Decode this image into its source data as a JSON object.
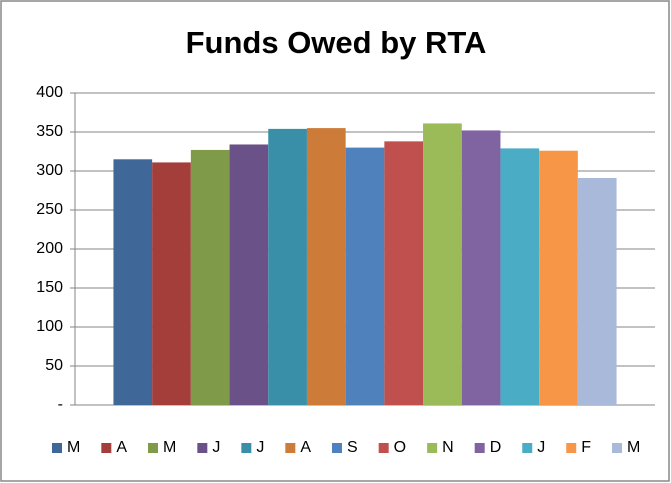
{
  "chart_data": {
    "type": "bar",
    "title": "Funds Owed by RTA",
    "ylim": [
      0,
      400
    ],
    "yticks": [
      {
        "value": 0,
        "label": "-"
      },
      50,
      100,
      150,
      200,
      250,
      300,
      350,
      400
    ],
    "grid": true,
    "legend": "bottom",
    "series": [
      {
        "name": "M",
        "color": "#3f6797",
        "values": [
          315
        ]
      },
      {
        "name": "A",
        "color": "#a33e3b",
        "values": [
          311
        ]
      },
      {
        "name": "M",
        "color": "#7f9a48",
        "values": [
          327
        ]
      },
      {
        "name": "J",
        "color": "#6a5188",
        "values": [
          334
        ]
      },
      {
        "name": "J",
        "color": "#3a8fa8",
        "values": [
          354
        ]
      },
      {
        "name": "A",
        "color": "#cc7b38",
        "values": [
          355
        ]
      },
      {
        "name": "S",
        "color": "#4f81bd",
        "values": [
          330
        ]
      },
      {
        "name": "O",
        "color": "#c0504d",
        "values": [
          338
        ]
      },
      {
        "name": "N",
        "color": "#9bbb59",
        "values": [
          361
        ]
      },
      {
        "name": "D",
        "color": "#8064a2",
        "values": [
          352
        ]
      },
      {
        "name": "J",
        "color": "#4bacc6",
        "values": [
          329
        ]
      },
      {
        "name": "F",
        "color": "#f79646",
        "values": [
          326
        ]
      },
      {
        "name": "M",
        "color": "#a8b9d9",
        "values": [
          291
        ]
      }
    ]
  }
}
